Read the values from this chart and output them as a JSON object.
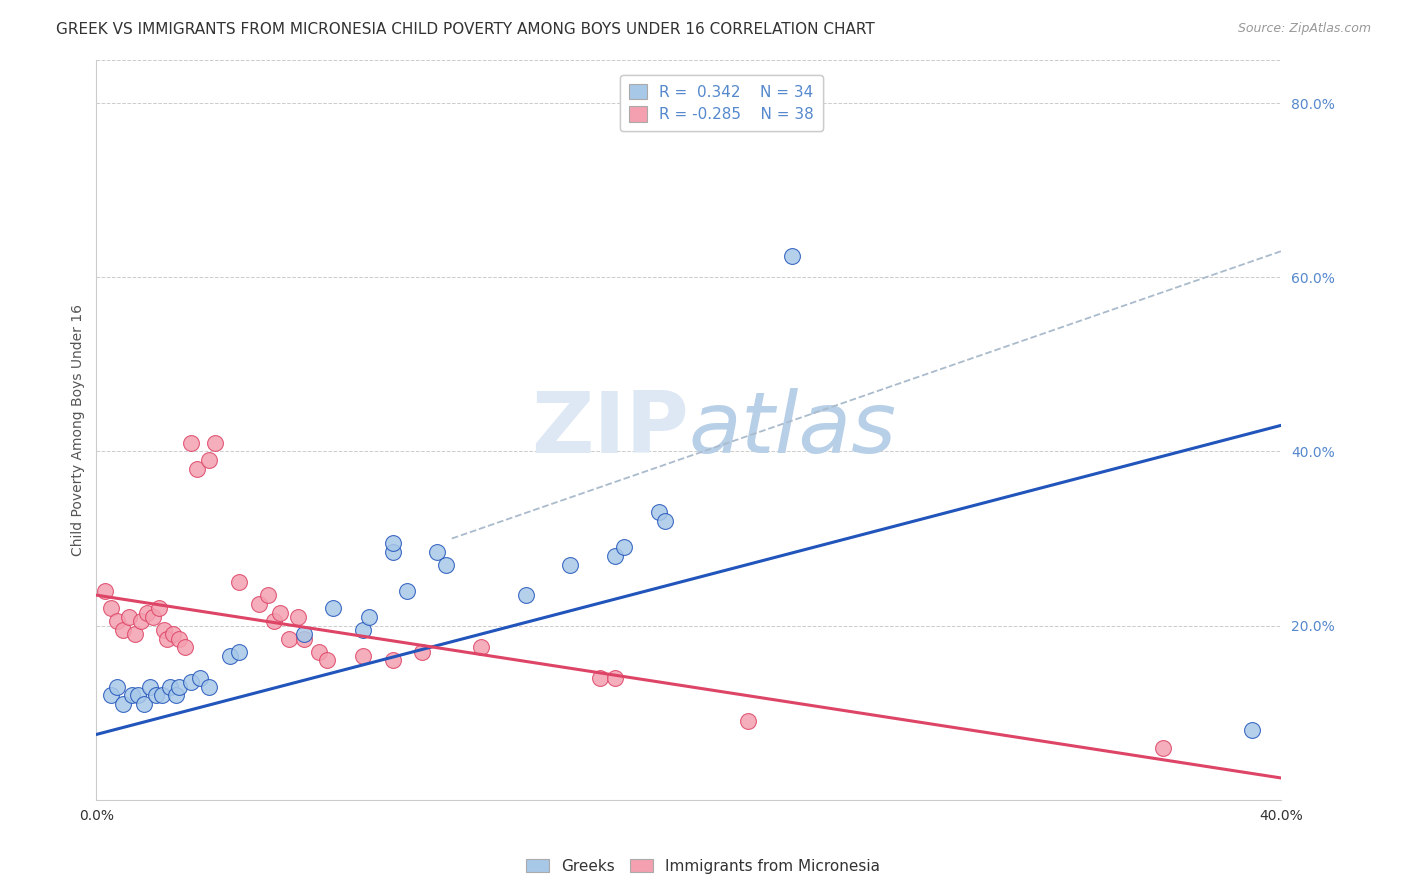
{
  "title": "GREEK VS IMMIGRANTS FROM MICRONESIA CHILD POVERTY AMONG BOYS UNDER 16 CORRELATION CHART",
  "source": "Source: ZipAtlas.com",
  "ylabel": "Child Poverty Among Boys Under 16",
  "xlim": [
    0.0,
    0.4
  ],
  "ylim": [
    0.0,
    0.85
  ],
  "xticks": [
    0.0,
    0.1,
    0.2,
    0.3,
    0.4
  ],
  "xticklabels": [
    "0.0%",
    "",
    "",
    "",
    "40.0%"
  ],
  "yticks_right": [
    0.0,
    0.2,
    0.4,
    0.6,
    0.8
  ],
  "yticklabels_right": [
    "",
    "20.0%",
    "40.0%",
    "60.0%",
    "80.0%"
  ],
  "blue_color": "#a8c8e8",
  "pink_color": "#f4a0b0",
  "blue_line_color": "#2255bb",
  "pink_line_color": "#dd4466",
  "dashed_line_color": "#aabbcc",
  "blue_scatter": [
    [
      0.005,
      0.12
    ],
    [
      0.007,
      0.13
    ],
    [
      0.009,
      0.11
    ],
    [
      0.012,
      0.12
    ],
    [
      0.014,
      0.12
    ],
    [
      0.016,
      0.11
    ],
    [
      0.018,
      0.13
    ],
    [
      0.02,
      0.12
    ],
    [
      0.022,
      0.12
    ],
    [
      0.025,
      0.13
    ],
    [
      0.027,
      0.12
    ],
    [
      0.028,
      0.13
    ],
    [
      0.032,
      0.135
    ],
    [
      0.035,
      0.14
    ],
    [
      0.038,
      0.13
    ],
    [
      0.045,
      0.165
    ],
    [
      0.048,
      0.17
    ],
    [
      0.07,
      0.19
    ],
    [
      0.08,
      0.22
    ],
    [
      0.09,
      0.195
    ],
    [
      0.092,
      0.21
    ],
    [
      0.1,
      0.285
    ],
    [
      0.1,
      0.295
    ],
    [
      0.105,
      0.24
    ],
    [
      0.115,
      0.285
    ],
    [
      0.118,
      0.27
    ],
    [
      0.145,
      0.235
    ],
    [
      0.16,
      0.27
    ],
    [
      0.175,
      0.28
    ],
    [
      0.178,
      0.29
    ],
    [
      0.19,
      0.33
    ],
    [
      0.192,
      0.32
    ],
    [
      0.235,
      0.625
    ],
    [
      0.39,
      0.08
    ]
  ],
  "pink_scatter": [
    [
      0.003,
      0.24
    ],
    [
      0.005,
      0.22
    ],
    [
      0.007,
      0.205
    ],
    [
      0.009,
      0.195
    ],
    [
      0.011,
      0.21
    ],
    [
      0.013,
      0.19
    ],
    [
      0.015,
      0.205
    ],
    [
      0.017,
      0.215
    ],
    [
      0.019,
      0.21
    ],
    [
      0.021,
      0.22
    ],
    [
      0.023,
      0.195
    ],
    [
      0.024,
      0.185
    ],
    [
      0.026,
      0.19
    ],
    [
      0.028,
      0.185
    ],
    [
      0.03,
      0.175
    ],
    [
      0.032,
      0.41
    ],
    [
      0.034,
      0.38
    ],
    [
      0.038,
      0.39
    ],
    [
      0.04,
      0.41
    ],
    [
      0.048,
      0.25
    ],
    [
      0.055,
      0.225
    ],
    [
      0.058,
      0.235
    ],
    [
      0.06,
      0.205
    ],
    [
      0.062,
      0.215
    ],
    [
      0.065,
      0.185
    ],
    [
      0.068,
      0.21
    ],
    [
      0.07,
      0.185
    ],
    [
      0.075,
      0.17
    ],
    [
      0.078,
      0.16
    ],
    [
      0.09,
      0.165
    ],
    [
      0.1,
      0.16
    ],
    [
      0.11,
      0.17
    ],
    [
      0.13,
      0.175
    ],
    [
      0.17,
      0.14
    ],
    [
      0.175,
      0.14
    ],
    [
      0.22,
      0.09
    ],
    [
      0.36,
      0.06
    ]
  ],
  "blue_line_x": [
    0.0,
    0.4
  ],
  "blue_line_y": [
    0.075,
    0.43
  ],
  "pink_line_x": [
    0.0,
    0.4
  ],
  "pink_line_y": [
    0.235,
    0.025
  ],
  "dashed_line_x": [
    0.12,
    0.4
  ],
  "dashed_line_y": [
    0.3,
    0.63
  ],
  "legend_labels": [
    "Greeks",
    "Immigrants from Micronesia"
  ],
  "title_fontsize": 11,
  "axis_label_fontsize": 10,
  "tick_fontsize": 10,
  "legend_fontsize": 11,
  "right_tick_color": "#5588cc"
}
